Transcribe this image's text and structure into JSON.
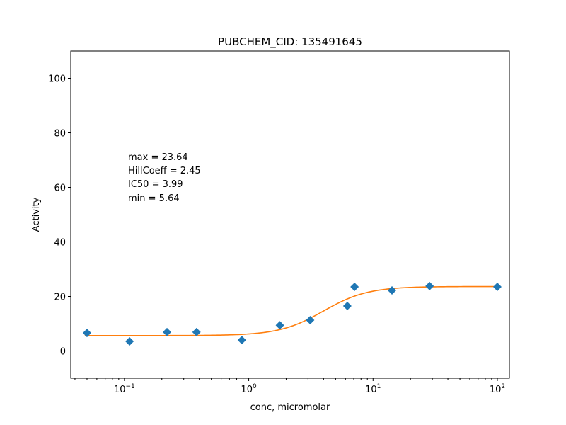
{
  "chart_data": {
    "type": "scatter",
    "title": "PUBCHEM_CID: 135491645",
    "xlabel": "conc, micromolar",
    "ylabel": "Activity",
    "xscale": "log",
    "xlim": [
      0.037,
      125
    ],
    "ylim": [
      -10,
      110
    ],
    "yticks": [
      0,
      20,
      40,
      60,
      80,
      100
    ],
    "xticks": [
      {
        "value": 0.1,
        "base": "10",
        "exp": "−1"
      },
      {
        "value": 1,
        "base": "10",
        "exp": "0"
      },
      {
        "value": 10,
        "base": "10",
        "exp": "1"
      },
      {
        "value": 100,
        "base": "10",
        "exp": "2"
      }
    ],
    "grid": false,
    "series": [
      {
        "kind": "points",
        "marker": "diamond",
        "color": "#1f77b4",
        "x": [
          0.05,
          0.11,
          0.22,
          0.38,
          0.88,
          1.78,
          3.12,
          6.21,
          7.1,
          14.2,
          28.5,
          100
        ],
        "y": [
          6.6,
          3.5,
          6.9,
          6.9,
          4.0,
          9.4,
          11.3,
          16.5,
          23.5,
          22.2,
          23.8,
          23.5
        ]
      },
      {
        "kind": "fit",
        "color": "#ff7f0e",
        "model": "hill",
        "params": {
          "max": 23.64,
          "min": 5.64,
          "ic50": 3.99,
          "hill": 2.45
        }
      }
    ],
    "annotations": [
      "max = 23.64",
      "HillCoeff = 2.45",
      "IC50 = 3.99",
      "min = 5.64"
    ]
  }
}
